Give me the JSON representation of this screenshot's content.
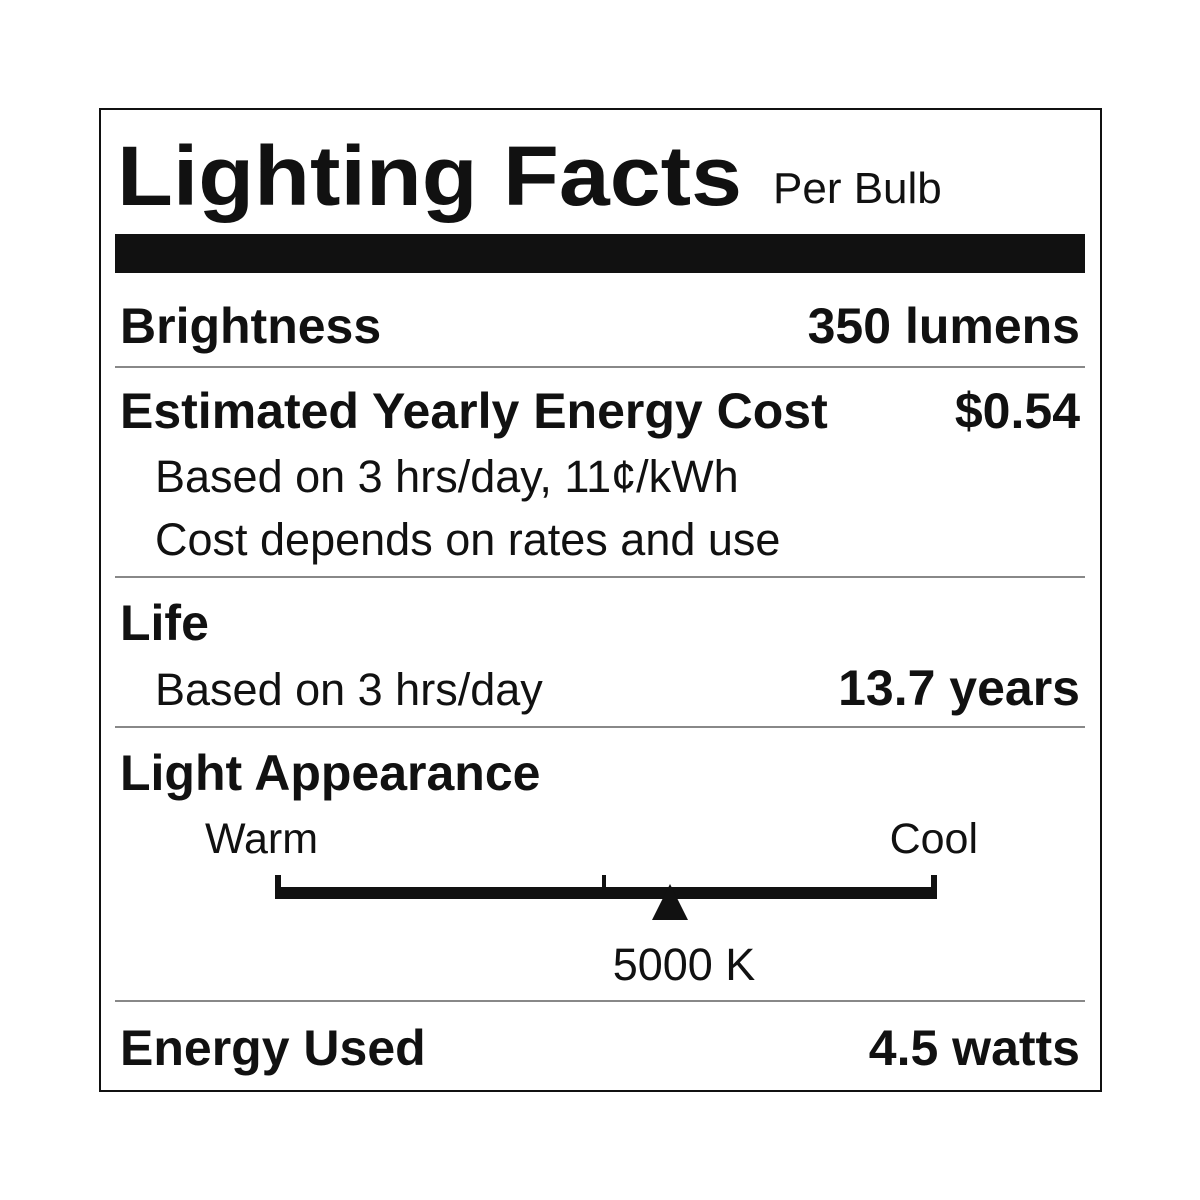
{
  "header": {
    "title": "Lighting Facts",
    "subtitle": "Per Bulb"
  },
  "brightness": {
    "label": "Brightness",
    "value": "350 lumens"
  },
  "energy_cost": {
    "label": "Estimated Yearly Energy Cost",
    "value": "$0.54",
    "notes": [
      "Based on 3 hrs/day, 11¢/kWh",
      "Cost depends on rates and use"
    ]
  },
  "life": {
    "label": "Life",
    "note": "Based on 3 hrs/day",
    "value": "13.7 years"
  },
  "light_appearance": {
    "label": "Light Appearance",
    "warm": "Warm",
    "cool": "Cool",
    "value": "5000 K"
  },
  "energy_used": {
    "label": "Energy Used",
    "value": "4.5 watts"
  }
}
